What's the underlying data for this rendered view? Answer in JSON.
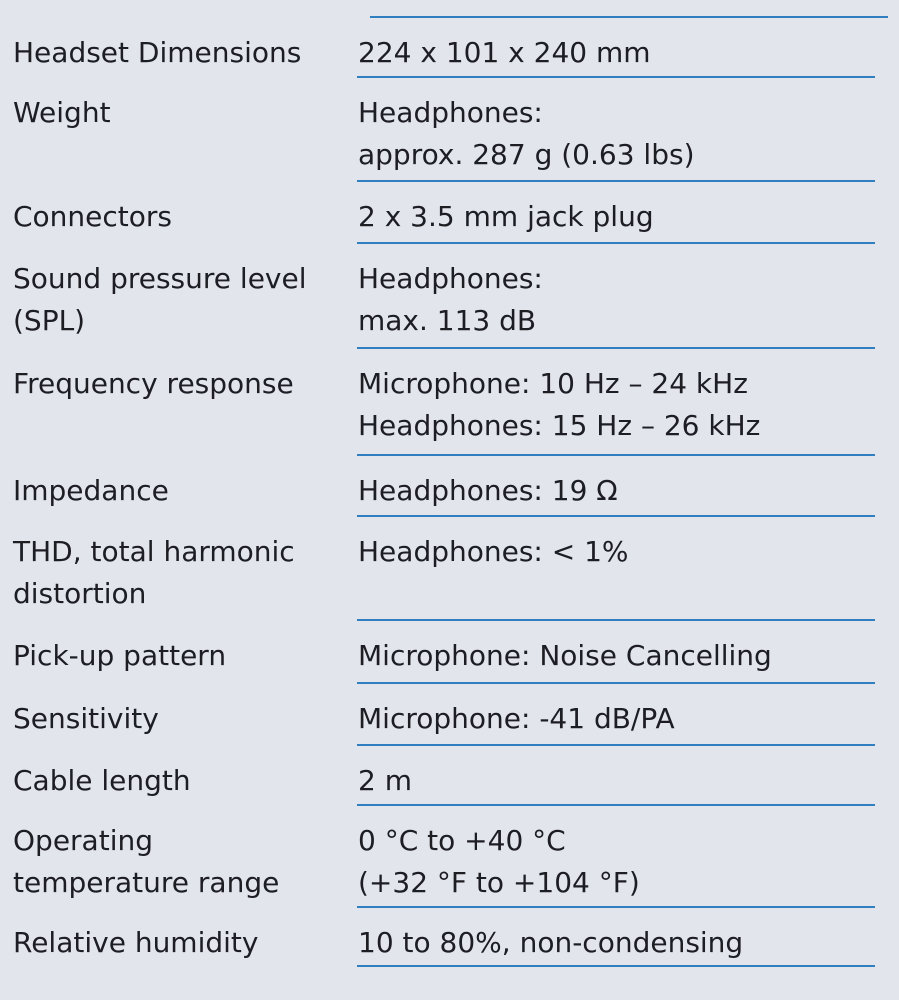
{
  "specs": [
    {
      "label": [
        "Headset Dimensions"
      ],
      "value": [
        "224 x 101 x 240 mm"
      ]
    },
    {
      "label": [
        "Weight"
      ],
      "value": [
        "Headphones:",
        "approx. 287 g (0.63 lbs)"
      ]
    },
    {
      "label": [
        "Connectors"
      ],
      "value": [
        "2 x 3.5 mm jack plug"
      ]
    },
    {
      "label": [
        "Sound pressure level",
        "(SPL)"
      ],
      "value": [
        "Headphones:",
        "max. 113 dB"
      ]
    },
    {
      "label": [
        "Frequency response"
      ],
      "value": [
        "Microphone: 10 Hz – 24 kHz",
        "Headphones: 15 Hz – 26 kHz"
      ]
    },
    {
      "label": [
        "Impedance"
      ],
      "value": [
        "Headphones: 19 Ω"
      ]
    },
    {
      "label": [
        "THD, total harmonic",
        "distortion"
      ],
      "value": [
        "Headphones: < 1%"
      ]
    },
    {
      "label": [
        "Pick-up pattern"
      ],
      "value": [
        "Microphone: Noise Cancelling"
      ]
    },
    {
      "label": [
        "Sensitivity"
      ],
      "value": [
        "Microphone: -41 dB/PA"
      ]
    },
    {
      "label": [
        "Cable length"
      ],
      "value": [
        "2 m"
      ]
    },
    {
      "label": [
        "Operating",
        "temperature range"
      ],
      "value": [
        "0 °C to +40 °C",
        "(+32 °F to +104 °F)"
      ]
    },
    {
      "label": [
        "Relative humidity"
      ],
      "value": [
        "10 to 80%, non-condensing"
      ]
    }
  ],
  "colors": {
    "rule": "#2f7fc1",
    "background": "#e3e5ec",
    "text": "#1d1d24"
  }
}
